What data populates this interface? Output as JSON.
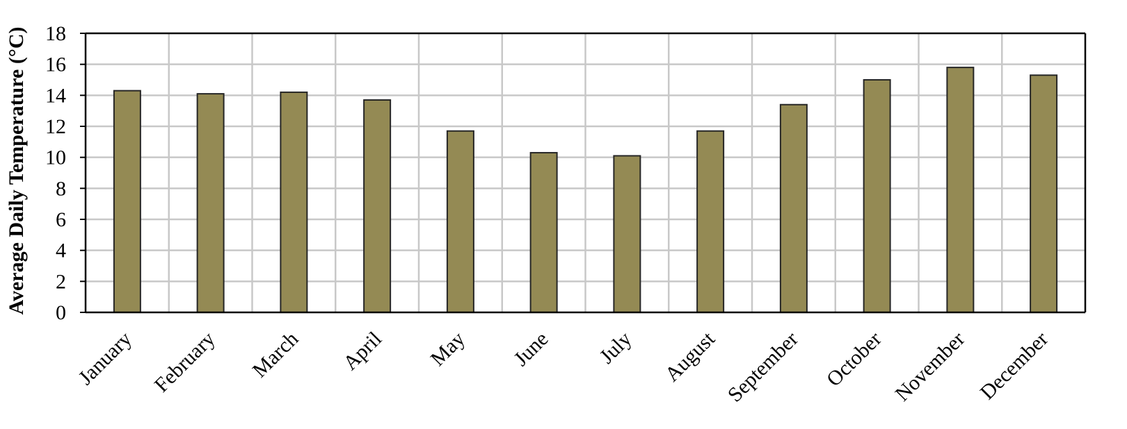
{
  "chart_data": {
    "type": "bar",
    "title": "",
    "xlabel": "",
    "ylabel": "Average Daily Temperature (°C)",
    "categories": [
      "January",
      "February",
      "March",
      "April",
      "May",
      "June",
      "July",
      "August",
      "September",
      "October",
      "November",
      "December"
    ],
    "values": [
      14.3,
      14.1,
      14.2,
      13.7,
      11.7,
      10.3,
      10.1,
      11.7,
      13.4,
      15.0,
      15.8,
      15.3
    ],
    "ylim": [
      0,
      18
    ],
    "yticks": [
      0,
      2,
      4,
      6,
      8,
      10,
      12,
      14,
      16,
      18
    ],
    "grid": true,
    "legend": "none",
    "bar_color": "#948a54",
    "bar_edge_color": "#262626",
    "grid_color": "#c8c8c8"
  }
}
